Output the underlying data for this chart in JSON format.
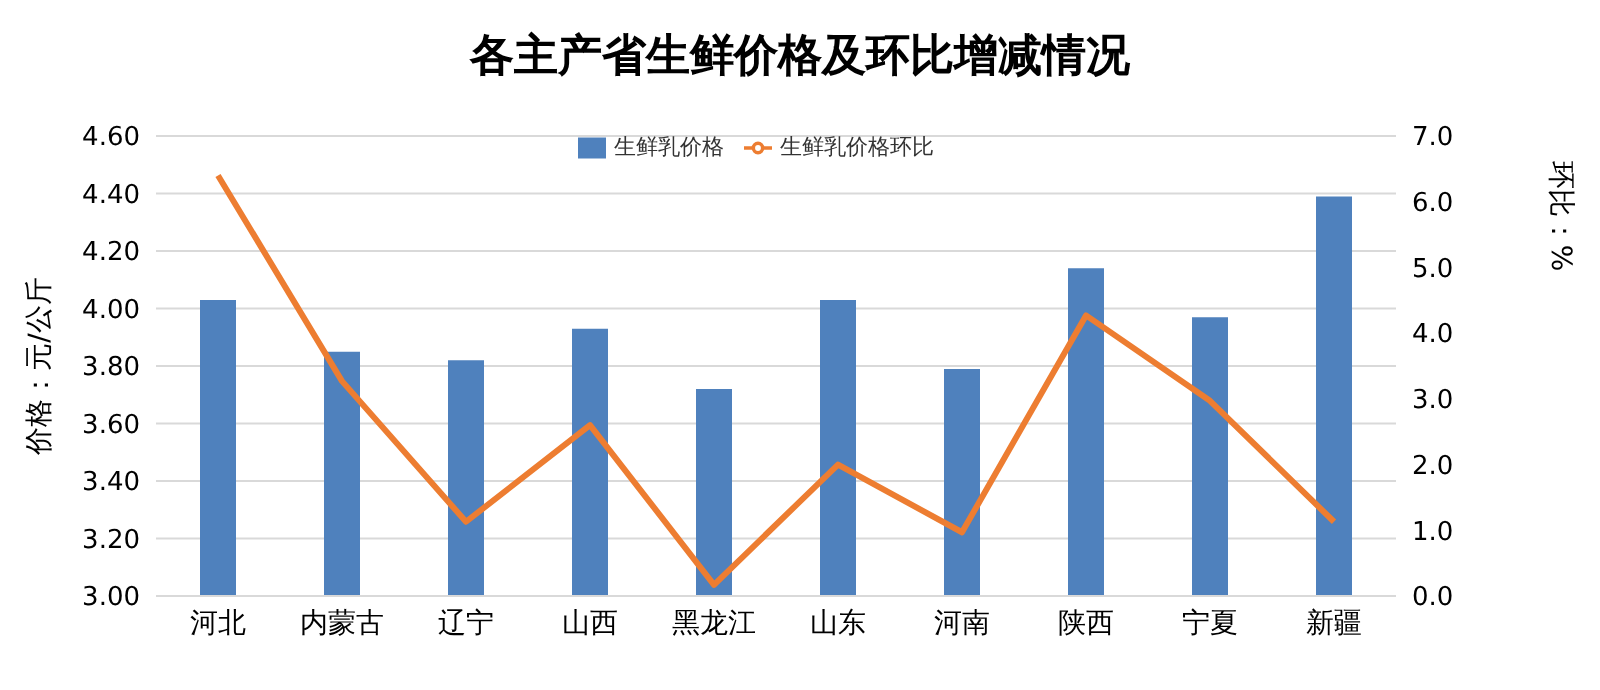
{
  "chart_data": {
    "type": "bar",
    "title": "各主产省生鲜价格及环比增减情况",
    "ylabel": "价格：元/公斤",
    "y2label": "环比：%",
    "categories": [
      "河北",
      "内蒙古",
      "辽宁",
      "山西",
      "黑龙江",
      "山东",
      "河南",
      "陕西",
      "宁夏",
      "新疆"
    ],
    "series": [
      {
        "name": "生鲜乳价格",
        "color": "#4f81bd",
        "values": [
          4.03,
          3.85,
          3.82,
          3.93,
          3.72,
          4.03,
          3.79,
          4.14,
          3.97,
          4.39
        ]
      },
      {
        "name": "生鲜乳价格环比",
        "type": "line",
        "axis": "y2",
        "color": "#ed7d31",
        "values": [
          6.4,
          3.27,
          1.13,
          2.6,
          0.17,
          2.0,
          0.97,
          4.27,
          2.97,
          1.13
        ]
      }
    ],
    "ylim": [
      3,
      4.6
    ],
    "yticks": [
      {
        "value": 3,
        "label": "3.00"
      },
      {
        "value": 3.2,
        "label": "3.20"
      },
      {
        "value": 3.4,
        "label": "3.40"
      },
      {
        "value": 3.6,
        "label": "3.60"
      },
      {
        "value": 3.8,
        "label": "3.80"
      },
      {
        "value": 4,
        "label": "4.00"
      },
      {
        "value": 4.2,
        "label": "4.20"
      },
      {
        "value": 4.4,
        "label": "4.40"
      },
      {
        "value": 4.6,
        "label": "4.60"
      }
    ],
    "y2lim": [
      0,
      7
    ],
    "y2ticks": [
      {
        "value": 0,
        "label": "0.0"
      },
      {
        "value": 1,
        "label": "1.0"
      },
      {
        "value": 2,
        "label": "2.0"
      },
      {
        "value": 3,
        "label": "3.0"
      },
      {
        "value": 4,
        "label": "4.0"
      },
      {
        "value": 5,
        "label": "5.0"
      },
      {
        "value": 6,
        "label": "6.0"
      },
      {
        "value": 7,
        "label": "7.0"
      }
    ],
    "grid": "y",
    "legend": "top",
    "marker": "none",
    "line_style": "solid"
  }
}
